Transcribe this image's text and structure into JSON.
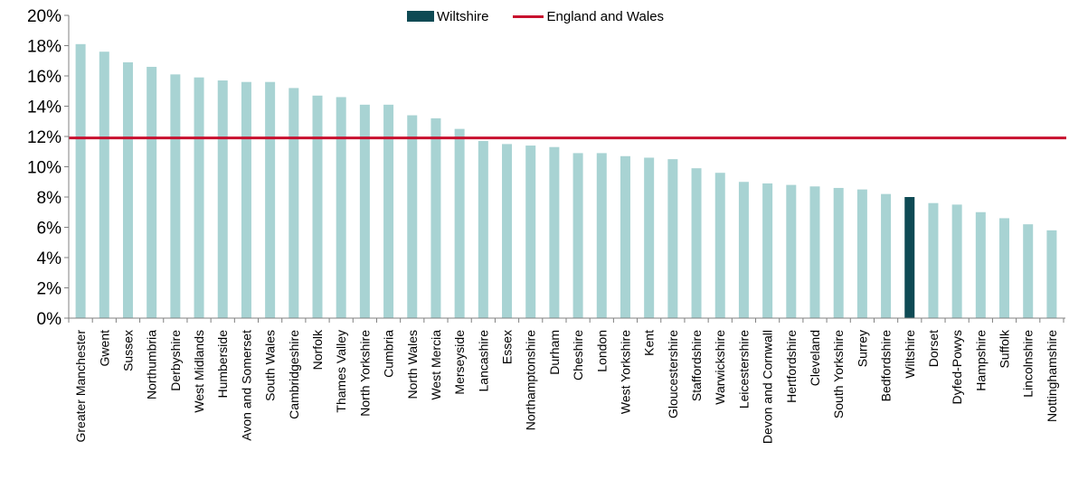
{
  "chart_data": {
    "type": "bar",
    "categories": [
      "Greater Manchester",
      "Gwent",
      "Sussex",
      "Northumbria",
      "Derbyshire",
      "West Midlands",
      "Humberside",
      "Avon and Somerset",
      "South Wales",
      "Cambridgeshire",
      "Norfolk",
      "Thames Valley",
      "North Yorkshire",
      "Cumbria",
      "North Wales",
      "West Mercia",
      "Merseyside",
      "Lancashire",
      "Essex",
      "Northamptonshire",
      "Durham",
      "Cheshire",
      "London",
      "West Yorkshire",
      "Kent",
      "Gloucestershire",
      "Staffordshire",
      "Warwickshire",
      "Leicestershire",
      "Devon and Cornwall",
      "Hertfordshire",
      "Cleveland",
      "South Yorkshire",
      "Surrey",
      "Bedfordshire",
      "Wiltshire",
      "Dorset",
      "Dyfed-Powys",
      "Hampshire",
      "Suffolk",
      "Lincolnshire",
      "Nottinghamshire"
    ],
    "values": [
      18.1,
      17.6,
      16.9,
      16.6,
      16.1,
      15.9,
      15.7,
      15.6,
      15.6,
      15.2,
      14.7,
      14.6,
      14.1,
      14.1,
      13.4,
      13.2,
      12.5,
      11.7,
      11.5,
      11.4,
      11.3,
      10.9,
      10.9,
      10.7,
      10.6,
      10.5,
      9.9,
      9.6,
      9.0,
      8.9,
      8.8,
      8.7,
      8.6,
      8.5,
      8.2,
      8.0,
      7.6,
      7.5,
      7.0,
      6.6,
      6.2,
      5.8
    ],
    "highlight": "Wiltshire",
    "reference_line": {
      "name": "England and Wales",
      "value": 11.9
    },
    "series": [
      {
        "name": "Wiltshire"
      },
      {
        "name": "England and Wales"
      }
    ],
    "yticks": [
      "0%",
      "2%",
      "4%",
      "6%",
      "8%",
      "10%",
      "12%",
      "14%",
      "16%",
      "18%",
      "20%"
    ],
    "ylim": [
      0,
      20
    ],
    "grid": false,
    "legend_position": "top-center",
    "colors": {
      "bar": "#a8d3d3",
      "highlight": "#0e4a54",
      "line": "#c8102e",
      "axis": "#808080"
    }
  }
}
